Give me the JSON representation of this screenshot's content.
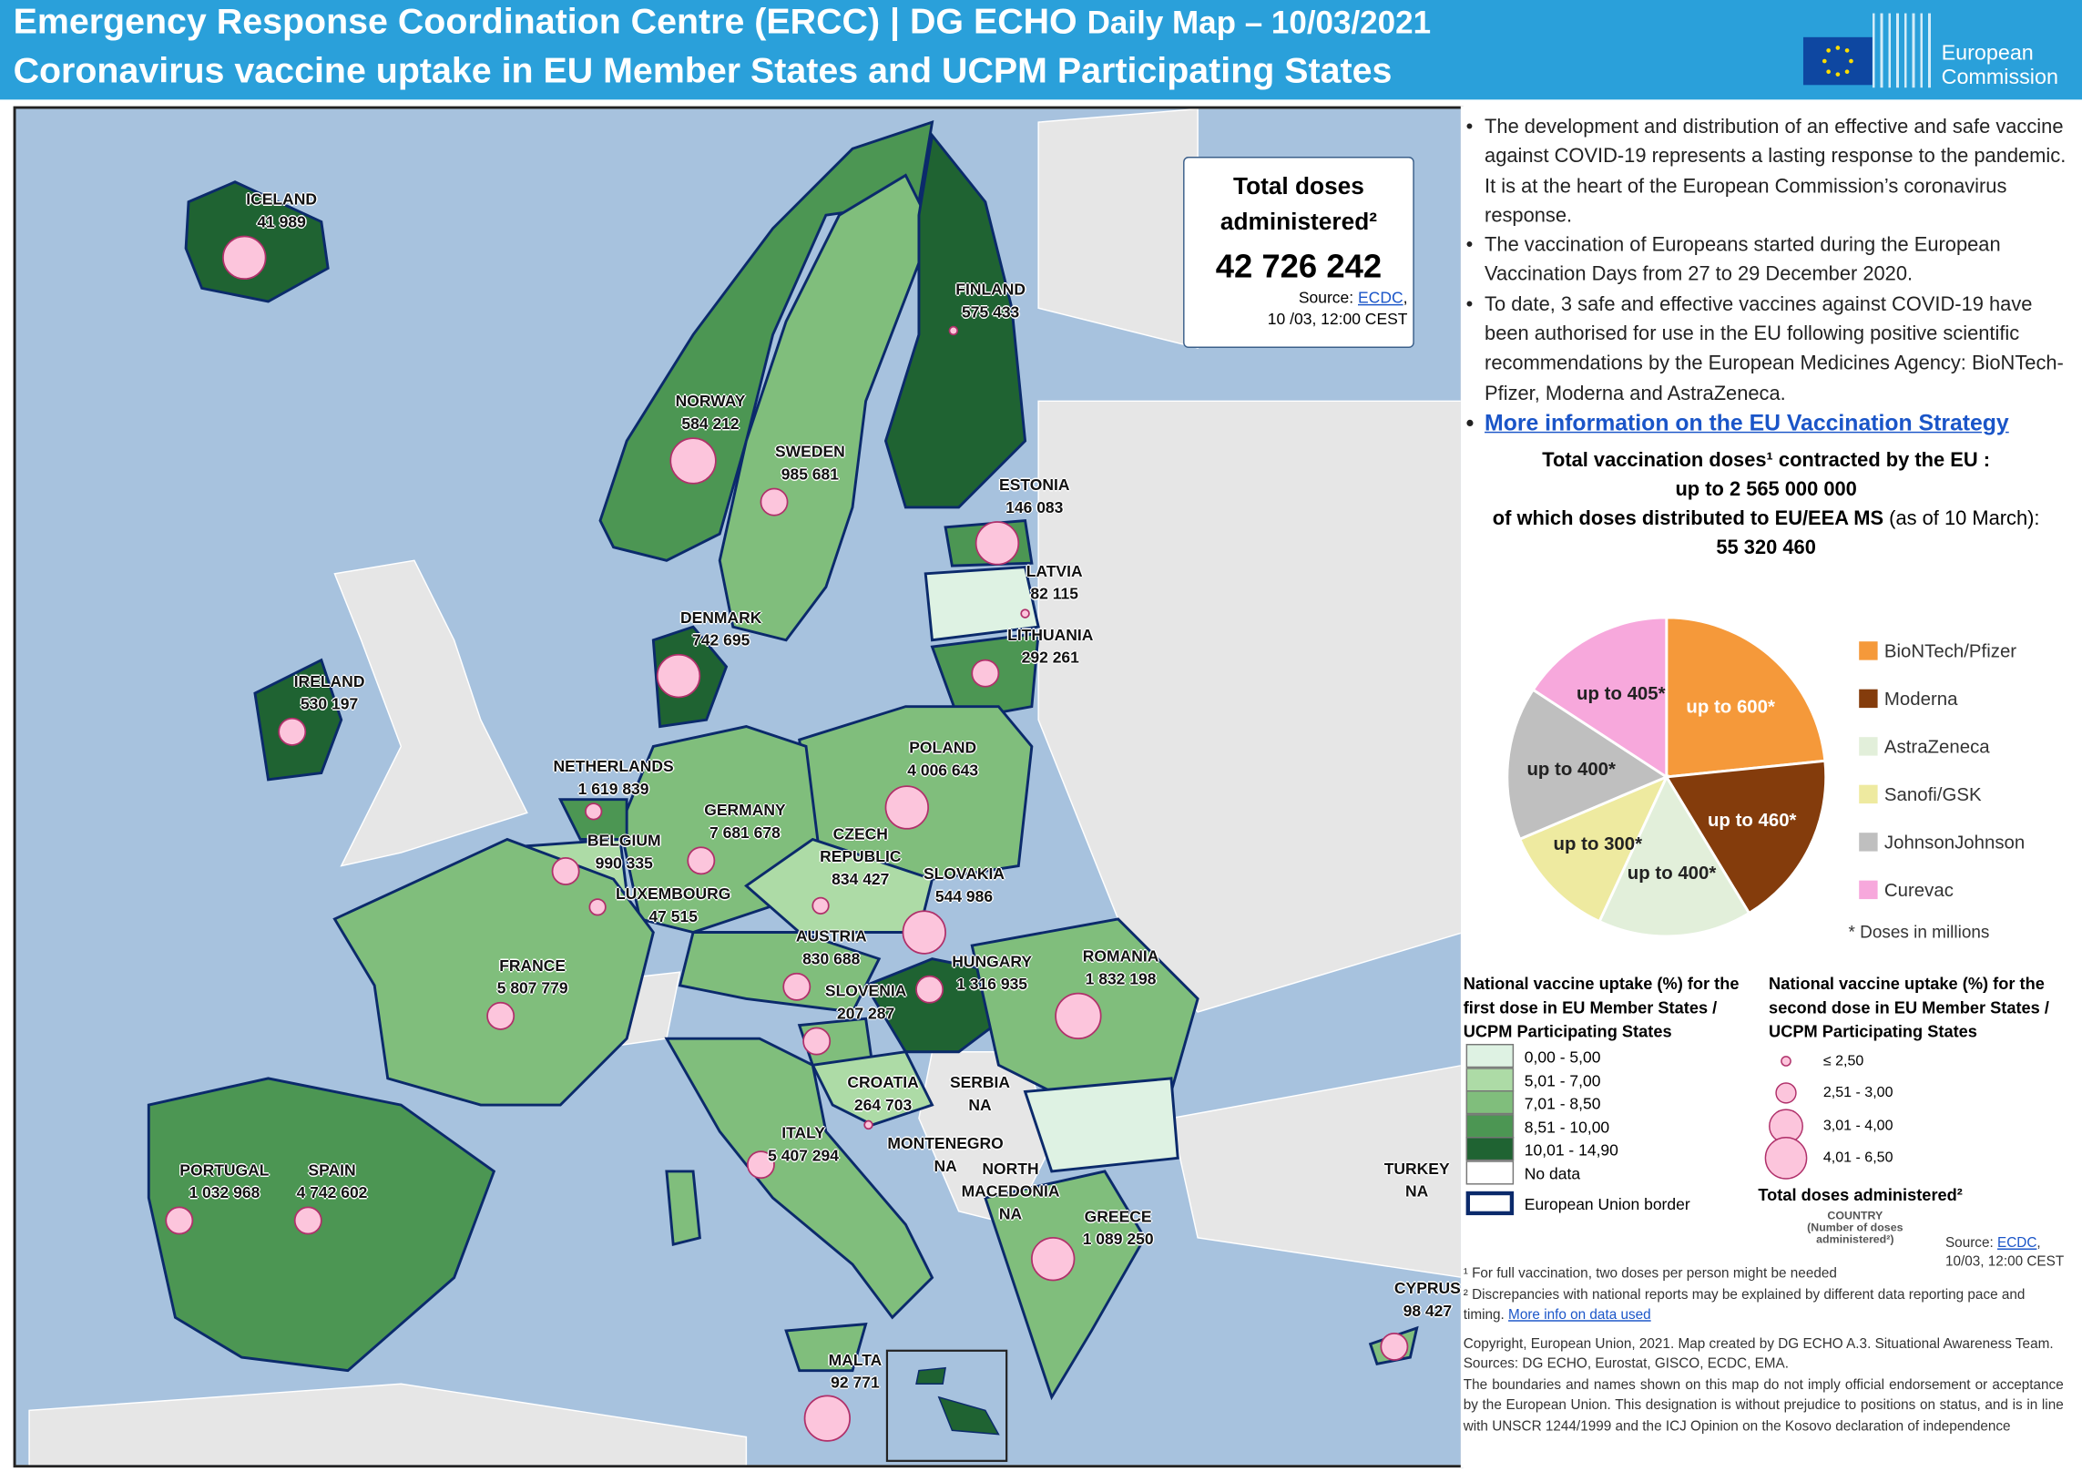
{
  "header": {
    "line1_main": "Emergency Response Coordination Centre (ERCC) | DG ECHO",
    "line1_sub": "Daily Map – 10/03/2021",
    "line2": "Coronavirus vaccine uptake in EU Member States and UCPM Participating States",
    "logo_text_1": "European",
    "logo_text_2": "Commission"
  },
  "total_box": {
    "title_1": "Total doses",
    "title_2": "administered²",
    "value": "42 726 242",
    "source_label": "Source: ",
    "source_link": "ECDC",
    "source_tail": ",",
    "source_time": "10 /03, 12:00 CEST"
  },
  "countries": [
    {
      "name": "ICELAND",
      "doses": "41 989"
    },
    {
      "name": "FINLAND",
      "doses": "575 433"
    },
    {
      "name": "NORWAY",
      "doses": "584 212"
    },
    {
      "name": "SWEDEN",
      "doses": "985 681"
    },
    {
      "name": "ESTONIA",
      "doses": "146 083"
    },
    {
      "name": "LATVIA",
      "doses": "82 115"
    },
    {
      "name": "DENMARK",
      "doses": "742 695"
    },
    {
      "name": "LITHUANIA",
      "doses": "292 261"
    },
    {
      "name": "IRELAND",
      "doses": "530 197"
    },
    {
      "name": "NETHERLANDS",
      "doses": "1 619 839"
    },
    {
      "name": "POLAND",
      "doses": "4 006 643"
    },
    {
      "name": "GERMANY",
      "doses": "7 681 678"
    },
    {
      "name": "BELGIUM",
      "doses": "990 335"
    },
    {
      "name": "CZECH REPUBLIC",
      "doses": "834 427"
    },
    {
      "name": "LUXEMBOURG",
      "doses": "47 515"
    },
    {
      "name": "SLOVAKIA",
      "doses": "544 986"
    },
    {
      "name": "AUSTRIA",
      "doses": "830 688"
    },
    {
      "name": "FRANCE",
      "doses": "5 807 779"
    },
    {
      "name": "HUNGARY",
      "doses": "1 316 935"
    },
    {
      "name": "SLOVENIA",
      "doses": "207 287"
    },
    {
      "name": "ROMANIA",
      "doses": "1 832 198"
    },
    {
      "name": "CROATIA",
      "doses": "264 703"
    },
    {
      "name": "SERBIA",
      "doses": "NA"
    },
    {
      "name": "ITALY",
      "doses": "5 407 294"
    },
    {
      "name": "MONTENEGRO",
      "doses": "NA"
    },
    {
      "name": "NORTH MACEDONIA",
      "doses": "NA"
    },
    {
      "name": "PORTUGAL",
      "doses": "1 032 968"
    },
    {
      "name": "SPAIN",
      "doses": "4 742 602"
    },
    {
      "name": "GREECE",
      "doses": "1 089 250"
    },
    {
      "name": "TURKEY",
      "doses": "NA"
    },
    {
      "name": "CYPRUS",
      "doses": "98 427"
    },
    {
      "name": "MALTA",
      "doses": "92 771"
    }
  ],
  "panel": {
    "bullets": [
      "The development and distribution of an effective and safe vaccine against COVID-19 represents a lasting response to the pandemic. It is at the heart of the European Commission’s coronavirus response.",
      "The vaccination of Europeans started during the European Vaccination Days from 27 to 29 December 2020.",
      "To date, 3 safe and effective vaccines against COVID-19 have been authorised for use in the EU following positive scientific recommendations by the European Medicines Agency: BioNTech-Pfizer, Moderna and AstraZeneca."
    ],
    "link": "More information on the EU Vaccination Strategy",
    "contracted_1": "Total vaccination doses¹ contracted by the EU :",
    "contracted_2": "up to 2 565 000 000",
    "distributed_1": "of which doses distributed to EU/EEA MS",
    "distributed_2": " (as of 10 March):",
    "distributed_3": "55 320 460",
    "pie_note": "* Doses in millions"
  },
  "chart_data": {
    "type": "pie",
    "title": "Total vaccination doses contracted by the EU (millions)",
    "units": "millions",
    "slices": [
      {
        "label": "BioNTech/Pfizer",
        "value": 600,
        "text": "up to 600*",
        "color": "#f5993a"
      },
      {
        "label": "Moderna",
        "value": 460,
        "text": "up to 460*",
        "color": "#843c0c"
      },
      {
        "label": "AstraZeneca",
        "value": 400,
        "text": "up to 400*",
        "color": "#e2efda"
      },
      {
        "label": "Sanofi/GSK",
        "value": 300,
        "text": "up to 300*",
        "color": "#eeeaa0"
      },
      {
        "label": "JohnsonJohnson",
        "value": 400,
        "text": "up to 400*",
        "color": "#bfbfbf"
      },
      {
        "label": "Curevac",
        "value": 405,
        "text": "up to 405*",
        "color": "#f7a8dc"
      }
    ],
    "legend": "right"
  },
  "legend1": {
    "title": "National vaccine uptake (%) for the first dose in EU Member States / UCPM Participating States",
    "classes": [
      {
        "label": "0,00 - 5,00",
        "color": "#def2e3"
      },
      {
        "label": "5,01 - 7,00",
        "color": "#addba6"
      },
      {
        "label": "7,01 - 8,50",
        "color": "#80be7c"
      },
      {
        "label": "8,51 - 10,00",
        "color": "#4c9653"
      },
      {
        "label": "10,01 - 14,90",
        "color": "#1f6332"
      },
      {
        "label": "No data",
        "color": "#ffffff"
      }
    ],
    "border_label": "European Union border"
  },
  "legend2": {
    "title": "National vaccine uptake (%) for the second dose in EU Member States / UCPM Participating States",
    "classes": [
      "≤ 2,50",
      "2,51 - 3,00",
      "3,01 - 4,00",
      "4,01 - 6,50"
    ],
    "total_label": "Total doses administered²",
    "country_label": "COUNTRY",
    "number_label": "(Number of doses administered²)",
    "source_label": "Source: ",
    "source_link": "ECDC",
    "source_tail": ",",
    "source_time": "10/03, 12:00 CEST"
  },
  "footnotes": {
    "f1": "¹ For full vaccination, two doses per person might be needed",
    "f2": "² Discrepancies with national reports may be explained by different data reporting pace and timing. ",
    "f2_link": "More info on data used",
    "copyright": "Copyright, European Union, 2021. Map created by DG ECHO A.3. Situational Awareness Team. Sources: DG ECHO, Eurostat, GISCO, ECDC, EMA.",
    "disclaimer": "The boundaries and names shown on this map do not imply official endorsement or acceptance by the European Union. This designation is without prejudice to positions on status, and is in line with UNSCR 1244/1999 and the ICJ Opinion on the Kosovo declaration of independence"
  }
}
